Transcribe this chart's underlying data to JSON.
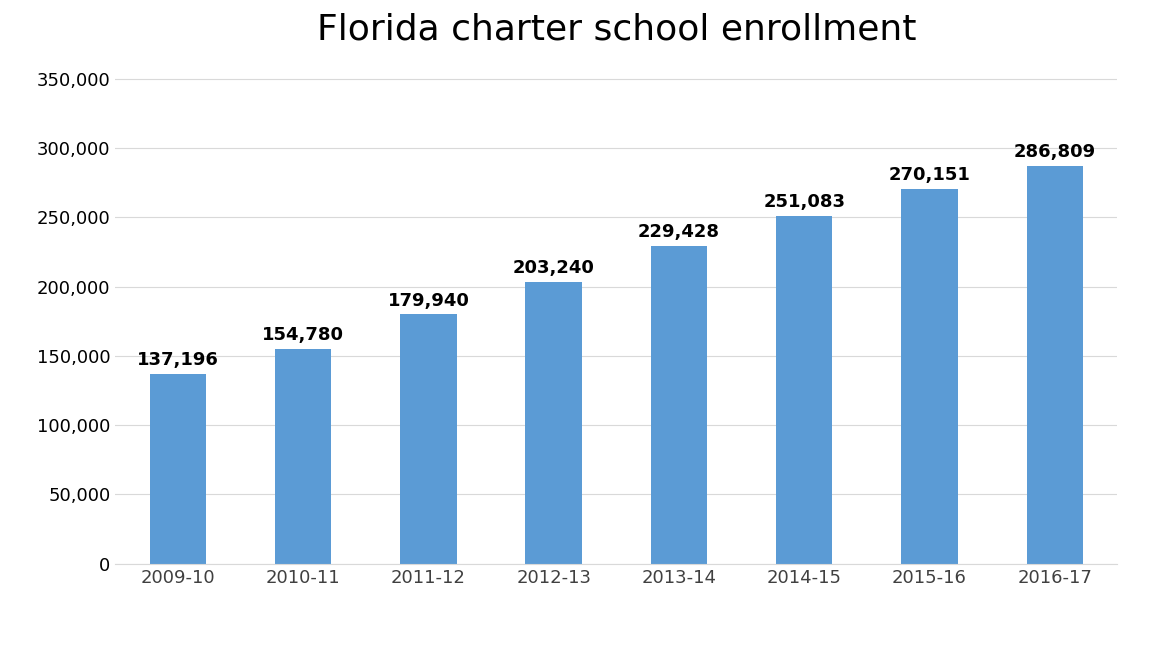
{
  "title": "Florida charter school enrollment",
  "categories": [
    "2009-10",
    "2010-11",
    "2011-12",
    "2012-13",
    "2013-14",
    "2014-15",
    "2015-16",
    "2016-17"
  ],
  "values": [
    137196,
    154780,
    179940,
    203240,
    229428,
    251083,
    270151,
    286809
  ],
  "bar_color": "#5B9BD5",
  "ylim": [
    0,
    360000
  ],
  "yticks": [
    0,
    50000,
    100000,
    150000,
    200000,
    250000,
    300000,
    350000
  ],
  "title_fontsize": 26,
  "tick_fontsize": 13,
  "label_fontsize": 13,
  "background_color": "#ffffff",
  "grid_color": "#d9d9d9",
  "bar_width": 0.45
}
